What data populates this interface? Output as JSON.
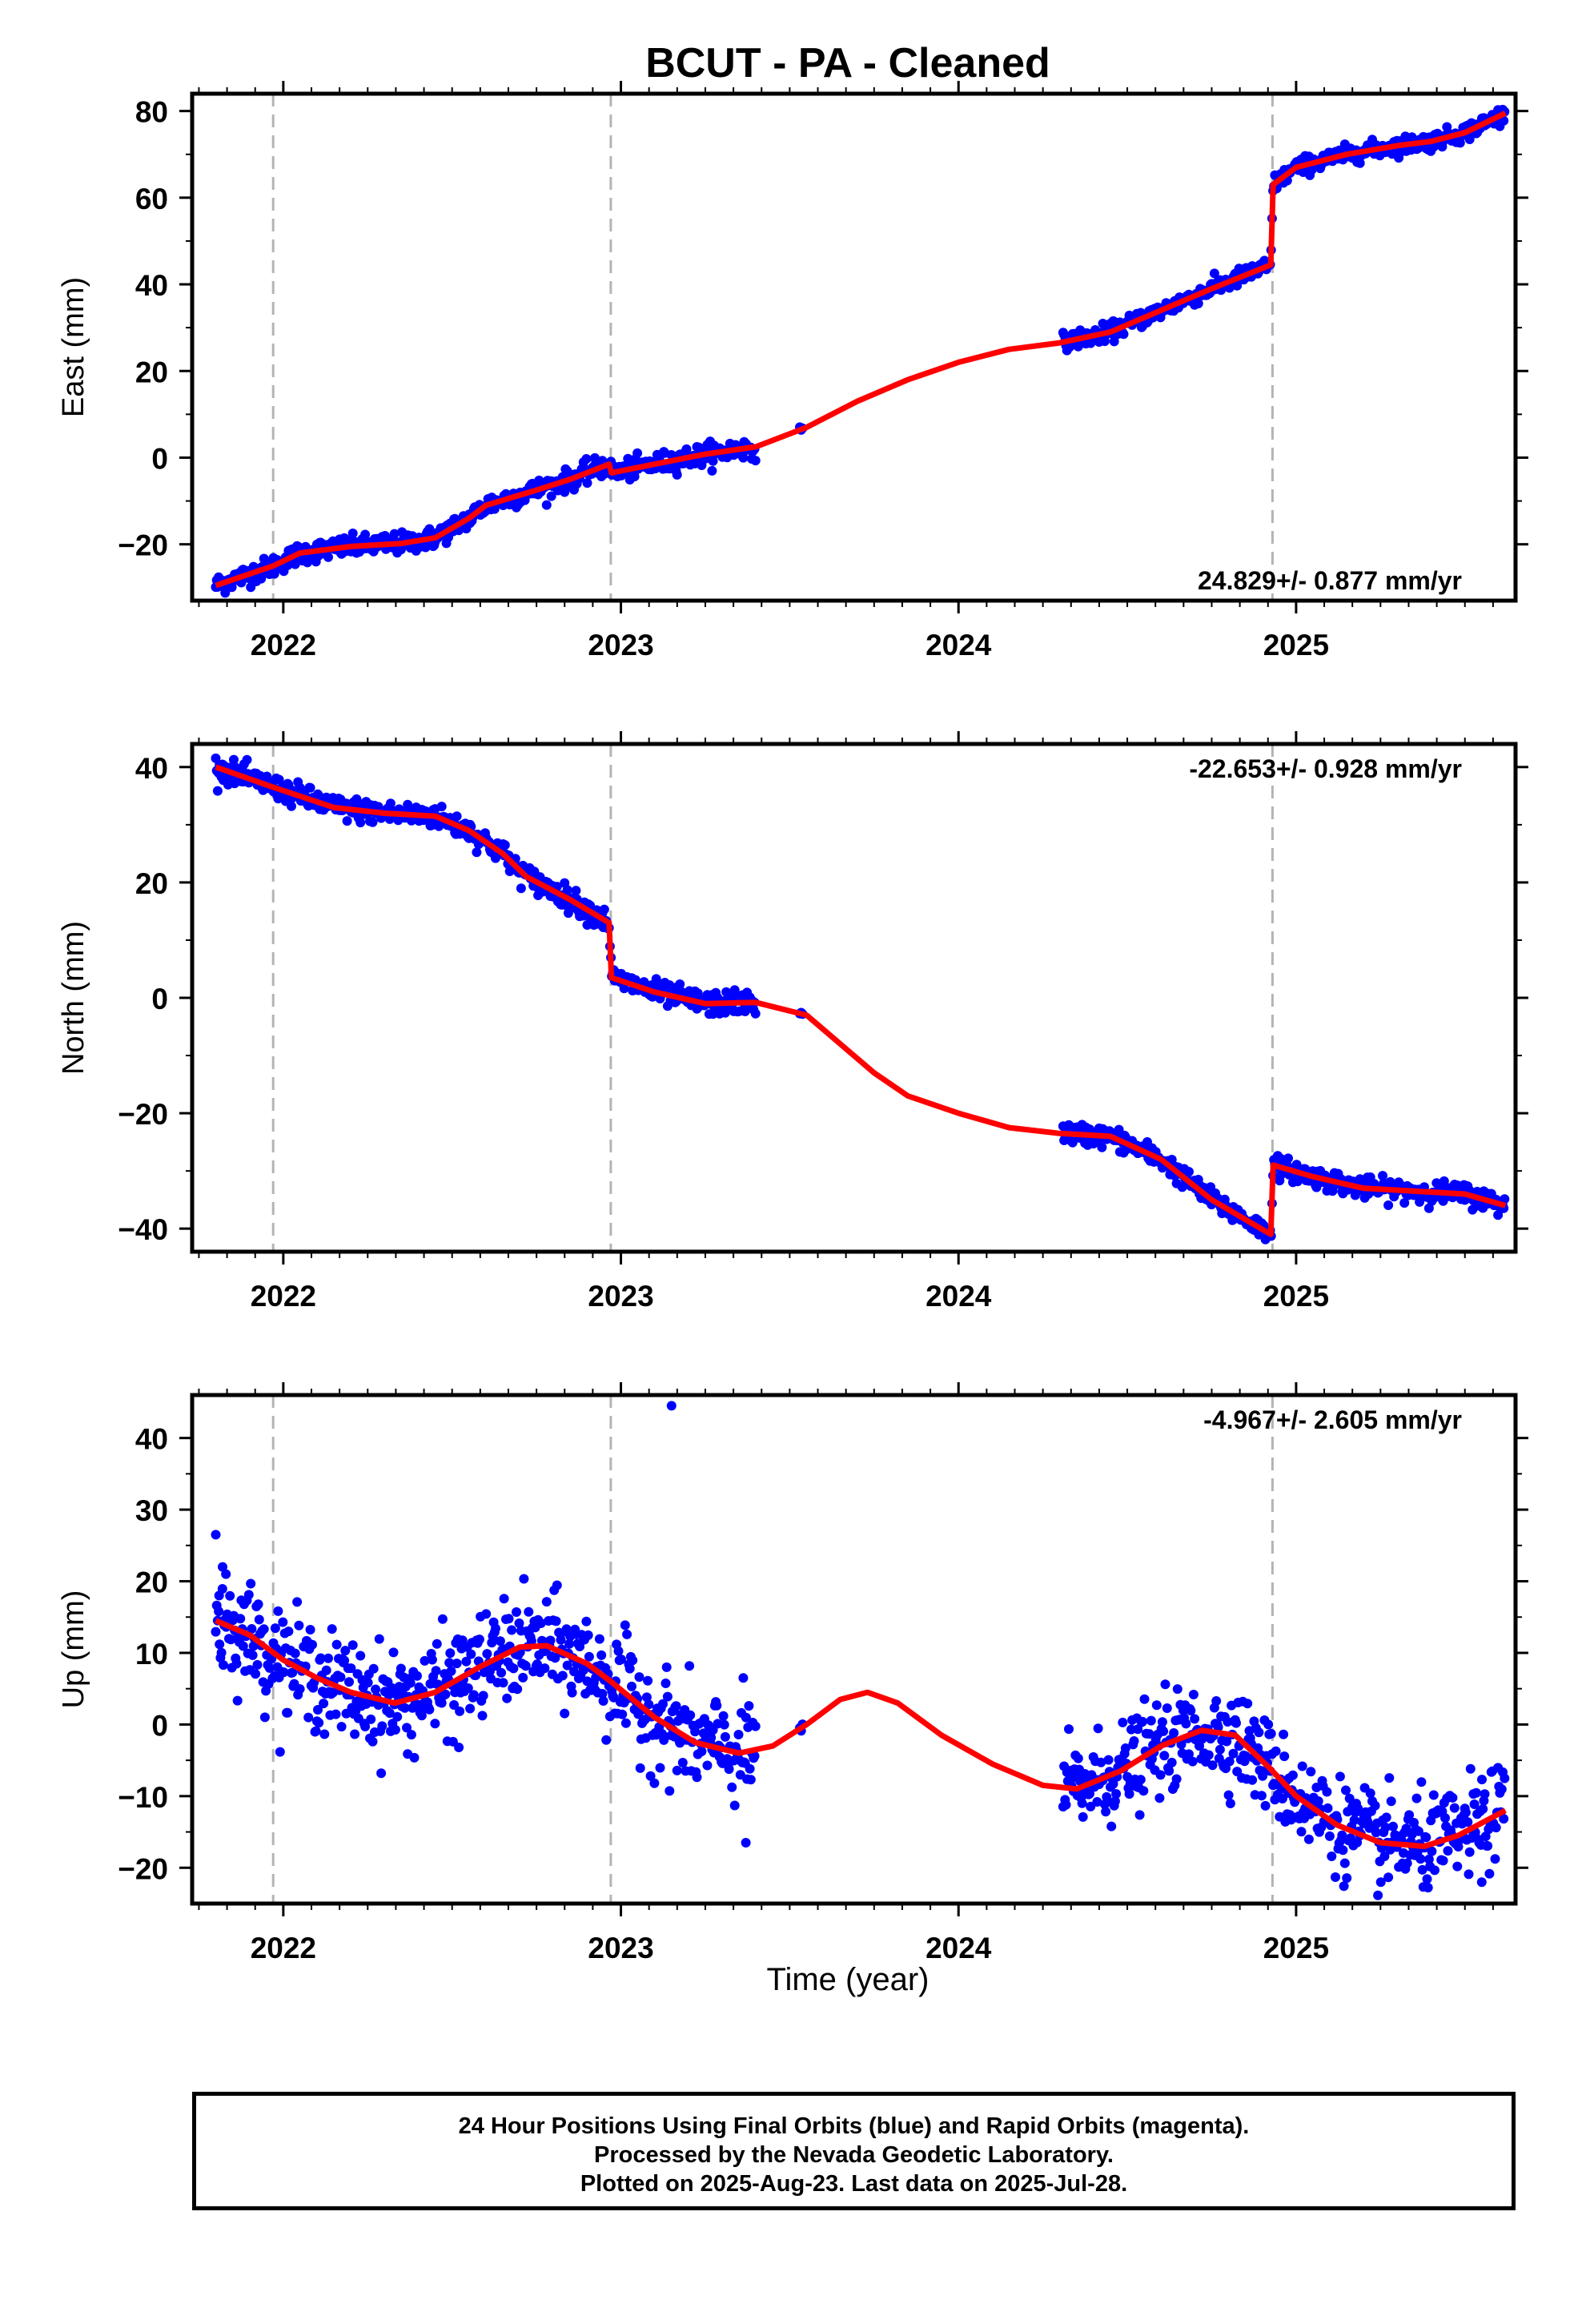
{
  "title": "BCUT  - PA - Cleaned",
  "xlabel": "Time (year)",
  "colors": {
    "points": "#0000ff",
    "model": "#ff0000",
    "eventline": "#b4b4b4",
    "axis": "#000000"
  },
  "footer": {
    "line1": "24 Hour Positions Using Final Orbits (blue) and Rapid Orbits (magenta).",
    "line2": "Processed by the Nevada Geodetic Laboratory.",
    "line3": "Plotted on 2025-Aug-23. Last data on 2025-Jul-28."
  },
  "chart_data": [
    {
      "type": "scatter",
      "ylabel": "East (mm)",
      "rate_label": "24.829+/- 0.877 mm/yr",
      "rate_position": "bottom-right",
      "xlim": [
        2021.73,
        2025.65
      ],
      "ylim": [
        -33,
        84
      ],
      "xticks": [
        2022,
        2023,
        2024,
        2025
      ],
      "yticks": [
        -20,
        0,
        20,
        40,
        60,
        80
      ],
      "event_lines": [
        2021.97,
        2022.97,
        2024.93
      ],
      "grid": false,
      "model_points": [
        [
          2021.8,
          -29.5
        ],
        [
          2021.97,
          -25
        ],
        [
          2022.05,
          -22
        ],
        [
          2022.2,
          -20.5
        ],
        [
          2022.35,
          -19.8
        ],
        [
          2022.45,
          -18.5
        ],
        [
          2022.55,
          -14
        ],
        [
          2022.6,
          -11
        ],
        [
          2022.75,
          -7.5
        ],
        [
          2022.85,
          -5
        ],
        [
          2022.965,
          -1.5
        ],
        [
          2022.972,
          -3.5
        ],
        [
          2023.1,
          -1.5
        ],
        [
          2023.25,
          0.8
        ],
        [
          2023.4,
          2.5
        ],
        [
          2023.55,
          7
        ],
        [
          2023.7,
          13
        ],
        [
          2023.85,
          18
        ],
        [
          2024.0,
          22
        ],
        [
          2024.15,
          25
        ],
        [
          2024.3,
          26.5
        ],
        [
          2024.45,
          29
        ],
        [
          2024.6,
          34
        ],
        [
          2024.75,
          39
        ],
        [
          2024.925,
          44.5
        ],
        [
          2024.932,
          63
        ],
        [
          2025.0,
          67
        ],
        [
          2025.15,
          70
        ],
        [
          2025.3,
          72
        ],
        [
          2025.4,
          73
        ],
        [
          2025.5,
          75
        ],
        [
          2025.62,
          79.5
        ]
      ],
      "observation_segments": [
        {
          "start": 2021.8,
          "end": 2023.4,
          "noise": 1.2
        },
        {
          "start": 2023.53,
          "end": 2023.53,
          "noise": 0.4
        },
        {
          "start": 2024.31,
          "end": 2025.62,
          "noise": 1.0
        }
      ],
      "outliers": []
    },
    {
      "type": "scatter",
      "ylabel": "North (mm)",
      "rate_label": "-22.653+/- 0.928 mm/yr",
      "rate_position": "top-right",
      "xlim": [
        2021.73,
        2025.65
      ],
      "ylim": [
        -44,
        44
      ],
      "xticks": [
        2022,
        2023,
        2024,
        2025
      ],
      "yticks": [
        -40,
        -20,
        0,
        20,
        40
      ],
      "event_lines": [
        2021.97,
        2022.97,
        2024.93
      ],
      "grid": false,
      "model_points": [
        [
          2021.8,
          40
        ],
        [
          2021.97,
          36.5
        ],
        [
          2022.15,
          33
        ],
        [
          2022.3,
          32
        ],
        [
          2022.45,
          31.5
        ],
        [
          2022.55,
          29
        ],
        [
          2022.65,
          25
        ],
        [
          2022.72,
          21
        ],
        [
          2022.85,
          17
        ],
        [
          2022.965,
          13
        ],
        [
          2022.972,
          3.5
        ],
        [
          2023.1,
          1
        ],
        [
          2023.25,
          -1
        ],
        [
          2023.4,
          -0.8
        ],
        [
          2023.55,
          -3
        ],
        [
          2023.65,
          -8
        ],
        [
          2023.75,
          -13
        ],
        [
          2023.85,
          -17
        ],
        [
          2024.0,
          -20
        ],
        [
          2024.15,
          -22.5
        ],
        [
          2024.3,
          -23.5
        ],
        [
          2024.45,
          -24
        ],
        [
          2024.6,
          -28
        ],
        [
          2024.75,
          -35
        ],
        [
          2024.925,
          -41
        ],
        [
          2024.932,
          -29
        ],
        [
          2025.05,
          -31
        ],
        [
          2025.2,
          -33
        ],
        [
          2025.35,
          -33.5
        ],
        [
          2025.5,
          -34
        ],
        [
          2025.62,
          -36
        ]
      ],
      "observation_segments": [
        {
          "start": 2021.8,
          "end": 2023.4,
          "noise": 1.0
        },
        {
          "start": 2023.53,
          "end": 2023.53,
          "noise": 0.4
        },
        {
          "start": 2024.31,
          "end": 2025.62,
          "noise": 0.9
        }
      ],
      "outliers": []
    },
    {
      "type": "scatter",
      "ylabel": "Up (mm)",
      "rate_label": "-4.967+/- 2.605 mm/yr",
      "rate_position": "top-right",
      "xlim": [
        2021.73,
        2025.65
      ],
      "ylim": [
        -25,
        46
      ],
      "xticks": [
        2022,
        2023,
        2024,
        2025
      ],
      "yticks": [
        -20,
        -10,
        0,
        10,
        20,
        30,
        40
      ],
      "event_lines": [
        2021.97,
        2022.97,
        2024.93
      ],
      "grid": false,
      "model_points": [
        [
          2021.8,
          14.5
        ],
        [
          2021.9,
          12.5
        ],
        [
          2022.0,
          9
        ],
        [
          2022.1,
          6.5
        ],
        [
          2022.2,
          4.5
        ],
        [
          2022.33,
          3
        ],
        [
          2022.45,
          4.5
        ],
        [
          2022.58,
          8
        ],
        [
          2022.7,
          10.8
        ],
        [
          2022.78,
          11
        ],
        [
          2022.9,
          8.5
        ],
        [
          2022.97,
          6
        ],
        [
          2023.1,
          1
        ],
        [
          2023.22,
          -2.5
        ],
        [
          2023.35,
          -4
        ],
        [
          2023.45,
          -3
        ],
        [
          2023.55,
          0
        ],
        [
          2023.65,
          3.5
        ],
        [
          2023.73,
          4.5
        ],
        [
          2023.82,
          3
        ],
        [
          2023.95,
          -1.5
        ],
        [
          2024.1,
          -5.5
        ],
        [
          2024.25,
          -8.5
        ],
        [
          2024.35,
          -9
        ],
        [
          2024.48,
          -6.5
        ],
        [
          2024.6,
          -3
        ],
        [
          2024.72,
          -0.8
        ],
        [
          2024.82,
          -1.5
        ],
        [
          2024.92,
          -6
        ],
        [
          2025.0,
          -10
        ],
        [
          2025.12,
          -14
        ],
        [
          2025.25,
          -16.5
        ],
        [
          2025.38,
          -17
        ],
        [
          2025.48,
          -15.5
        ],
        [
          2025.62,
          -12
        ]
      ],
      "observation_segments": [
        {
          "start": 2021.8,
          "end": 2023.4,
          "noise": 3.5
        },
        {
          "start": 2023.53,
          "end": 2023.53,
          "noise": 1.0
        },
        {
          "start": 2024.31,
          "end": 2025.62,
          "noise": 3.2
        }
      ],
      "outliers": [
        [
          2021.8,
          26.5
        ],
        [
          2021.82,
          22
        ],
        [
          2021.83,
          21
        ],
        [
          2021.81,
          18
        ],
        [
          2023.15,
          44.5
        ],
        [
          2022.52,
          -3.2
        ],
        [
          2023.37,
          -16.5
        ],
        [
          2025.55,
          -22
        ]
      ]
    }
  ]
}
